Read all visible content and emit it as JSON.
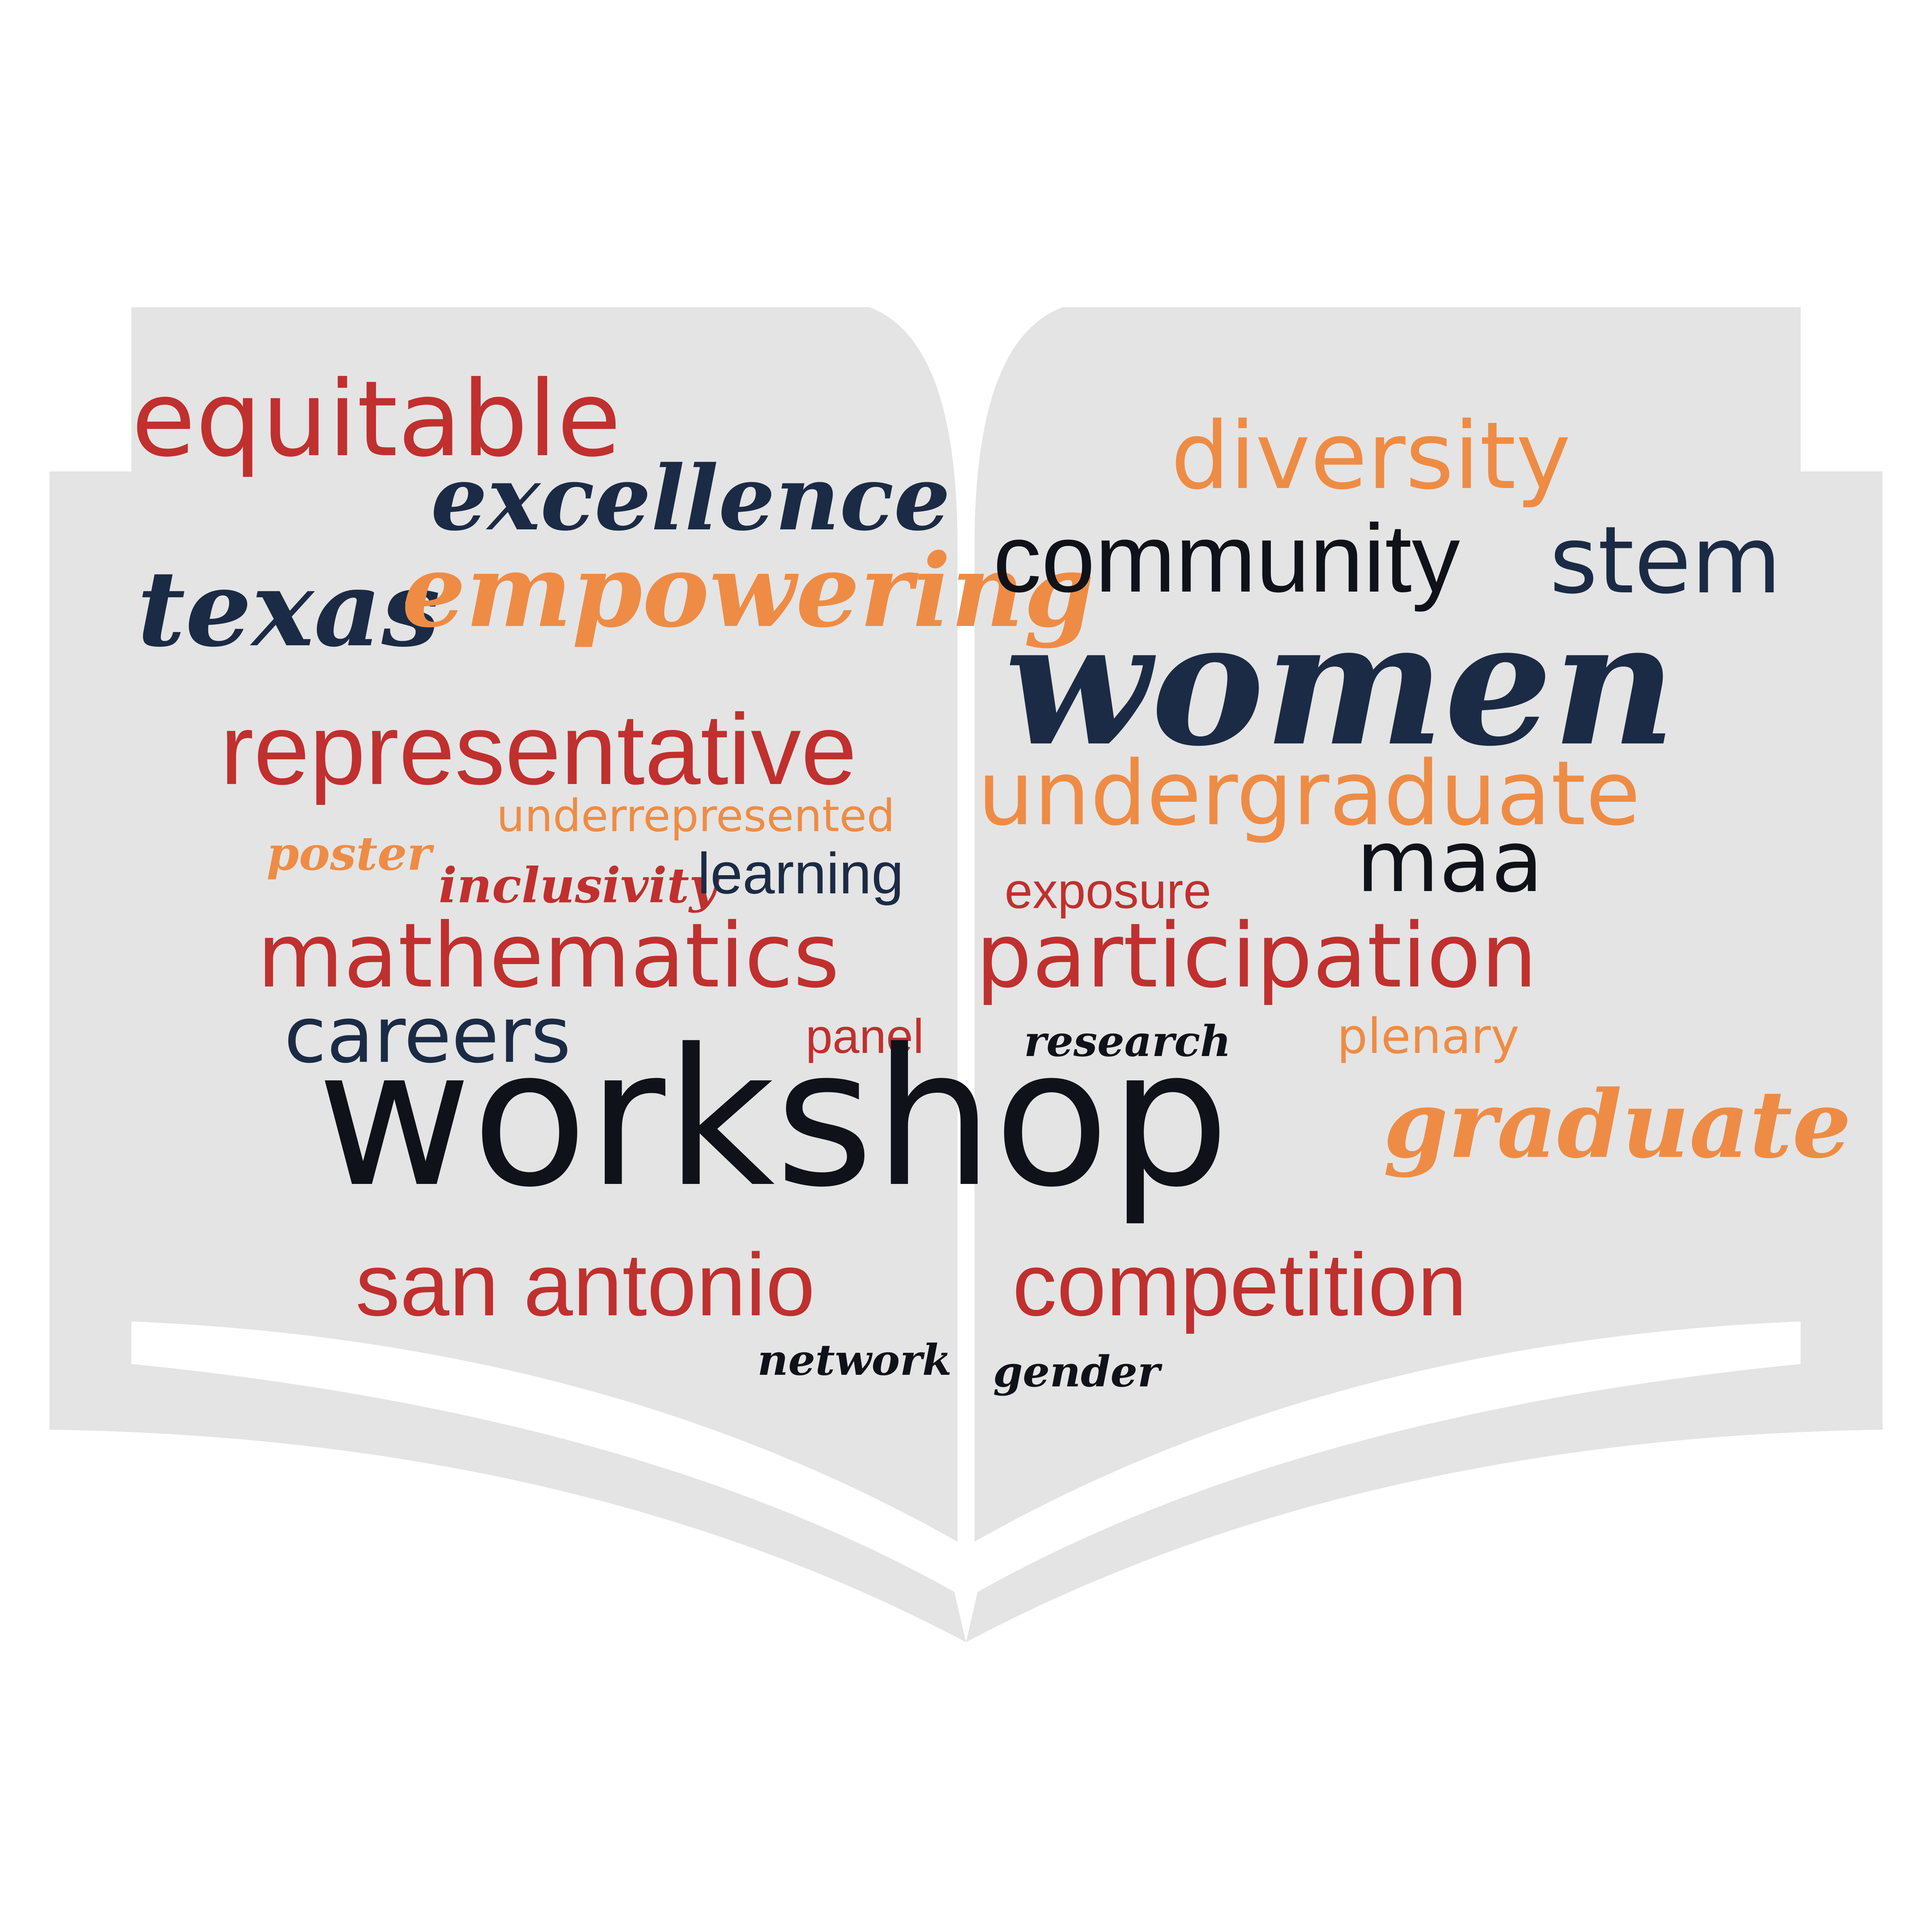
{
  "colors": {
    "background": "#ffffff",
    "book": "#e4e4e4",
    "red": "#c0302e",
    "orange": "#ee8c45",
    "navy": "#1b2b45",
    "black": "#0f1218"
  },
  "book_icon": "open-book-icon",
  "words": {
    "equitable": "equitable",
    "excellence": "excellence",
    "texas": "texas",
    "empowering": "empowering",
    "diversity": "diversity",
    "community": "community",
    "stem": "stem",
    "women": "women",
    "representative": "representative",
    "underrepresented": "underrepresented",
    "undergraduate": "undergraduate",
    "poster": "poster",
    "inclusivity": "inclusivity",
    "learning": "learning",
    "exposure": "exposure",
    "maa": "maa",
    "mathematics": "mathematics",
    "participation": "participation",
    "careers": "careers",
    "panel": "panel",
    "research": "research",
    "plenary": "plenary",
    "workshop": "workshop",
    "graduate": "graduate",
    "san_antonio": "san antonio",
    "competition": "competition",
    "network": "network",
    "gender": "gender"
  }
}
